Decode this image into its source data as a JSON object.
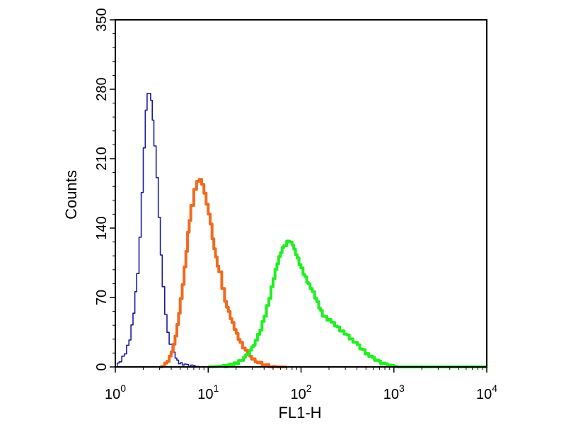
{
  "chart_data": {
    "type": "line",
    "title": "",
    "xlabel": "FL1-H",
    "ylabel": "Counts",
    "x_scale": "log",
    "xlim": [
      1,
      10000
    ],
    "ylim": [
      0,
      350
    ],
    "grid": false,
    "legend": "none",
    "x_ticks": [
      {
        "base": "10",
        "exp": "0",
        "value": 1
      },
      {
        "base": "10",
        "exp": "1",
        "value": 10
      },
      {
        "base": "10",
        "exp": "2",
        "value": 100
      },
      {
        "base": "10",
        "exp": "3",
        "value": 1000
      },
      {
        "base": "10",
        "exp": "4",
        "value": 10000
      }
    ],
    "y_ticks": [
      "0",
      "70",
      "140",
      "210",
      "280",
      "350"
    ],
    "y_tick_values": [
      0,
      70,
      140,
      210,
      280,
      350
    ],
    "series": [
      {
        "color": "#1a1aa0",
        "stroke": "thin",
        "points": [
          [
            1.0,
            0
          ],
          [
            1.1,
            6
          ],
          [
            1.25,
            14
          ],
          [
            1.4,
            28
          ],
          [
            1.55,
            55
          ],
          [
            1.7,
            95
          ],
          [
            1.8,
            130
          ],
          [
            1.9,
            175
          ],
          [
            2.0,
            220
          ],
          [
            2.1,
            258
          ],
          [
            2.2,
            275
          ],
          [
            2.3,
            275
          ],
          [
            2.4,
            268
          ],
          [
            2.5,
            248
          ],
          [
            2.6,
            222
          ],
          [
            2.75,
            190
          ],
          [
            2.9,
            150
          ],
          [
            3.05,
            112
          ],
          [
            3.2,
            80
          ],
          [
            3.4,
            52
          ],
          [
            3.6,
            34
          ],
          [
            3.8,
            22
          ],
          [
            4.1,
            14
          ],
          [
            4.4,
            8
          ],
          [
            4.8,
            4
          ],
          [
            5.5,
            2
          ],
          [
            6.5,
            1
          ],
          [
            8,
            0
          ],
          [
            12,
            0
          ]
        ]
      },
      {
        "color": "#f06a1e",
        "stroke": "thick",
        "points": [
          [
            3.0,
            0
          ],
          [
            3.4,
            3
          ],
          [
            3.8,
            10
          ],
          [
            4.2,
            22
          ],
          [
            4.6,
            42
          ],
          [
            5.0,
            68
          ],
          [
            5.5,
            100
          ],
          [
            6.0,
            135
          ],
          [
            6.5,
            162
          ],
          [
            7.0,
            180
          ],
          [
            7.5,
            188
          ],
          [
            8.0,
            190
          ],
          [
            8.5,
            185
          ],
          [
            9.0,
            176
          ],
          [
            9.5,
            165
          ],
          [
            10.0,
            155
          ],
          [
            10.5,
            145
          ],
          [
            11,
            130
          ],
          [
            12,
            110
          ],
          [
            13,
            95
          ],
          [
            14,
            80
          ],
          [
            15,
            67
          ],
          [
            16.5,
            55
          ],
          [
            18,
            44
          ],
          [
            20,
            33
          ],
          [
            22,
            24
          ],
          [
            25,
            16
          ],
          [
            28,
            10
          ],
          [
            32,
            6
          ],
          [
            38,
            3
          ],
          [
            45,
            1
          ],
          [
            55,
            0
          ],
          [
            70,
            0
          ]
        ]
      },
      {
        "color": "#22ee22",
        "stroke": "thick",
        "points": [
          [
            10,
            0
          ],
          [
            16,
            1
          ],
          [
            20,
            4
          ],
          [
            24,
            9
          ],
          [
            28,
            16
          ],
          [
            32,
            26
          ],
          [
            36,
            38
          ],
          [
            40,
            52
          ],
          [
            45,
            70
          ],
          [
            50,
            90
          ],
          [
            55,
            105
          ],
          [
            60,
            116
          ],
          [
            65,
            123
          ],
          [
            70,
            126
          ],
          [
            75,
            125
          ],
          [
            80,
            122
          ],
          [
            87,
            114
          ],
          [
            95,
            104
          ],
          [
            105,
            94
          ],
          [
            115,
            86
          ],
          [
            125,
            80
          ],
          [
            140,
            70
          ],
          [
            155,
            60
          ],
          [
            170,
            52
          ],
          [
            190,
            48
          ],
          [
            210,
            46
          ],
          [
            230,
            42
          ],
          [
            260,
            37
          ],
          [
            290,
            34
          ],
          [
            330,
            29
          ],
          [
            380,
            24
          ],
          [
            430,
            19
          ],
          [
            490,
            14
          ],
          [
            560,
            10
          ],
          [
            650,
            6
          ],
          [
            760,
            3
          ],
          [
            900,
            1
          ],
          [
            1100,
            0
          ],
          [
            10000,
            0
          ]
        ]
      }
    ]
  }
}
